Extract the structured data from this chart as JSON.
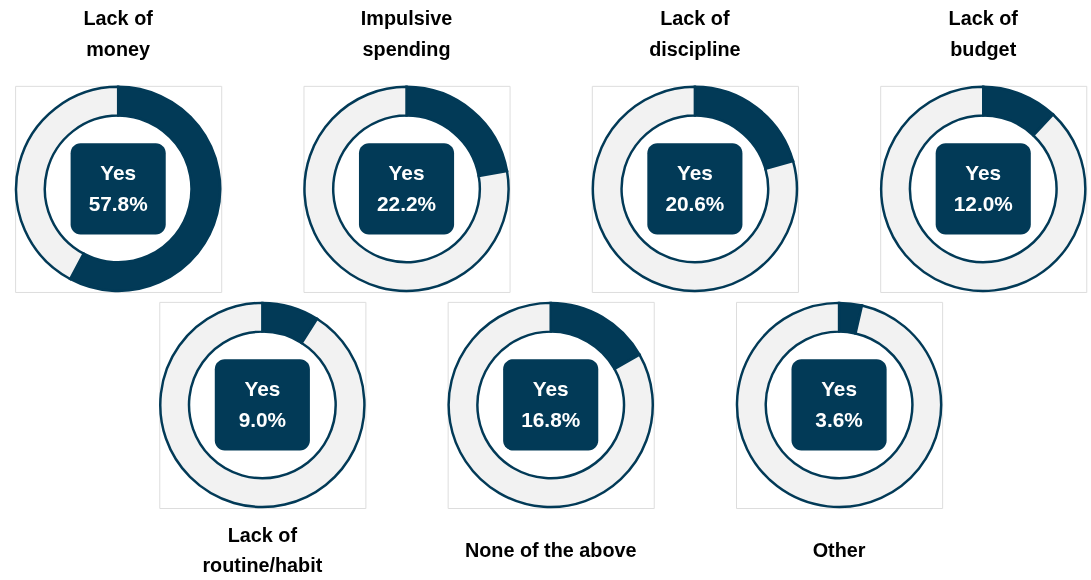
{
  "chart_data": [
    {
      "type": "donut",
      "title": "Lack of\nmoney",
      "categories": [
        "Yes",
        null
      ],
      "values": [
        57.8,
        42.2
      ],
      "colors": [
        "#023a57",
        "#f2f2f2"
      ],
      "value_labels": [
        "57.8%",
        null
      ]
    },
    {
      "type": "donut",
      "title": "Impulsive\nspending",
      "categories": [
        "Yes",
        null
      ],
      "values": [
        22.2,
        77.8
      ],
      "colors": [
        "#023a57",
        "#f2f2f2"
      ],
      "value_labels": [
        "22.2%",
        null
      ]
    },
    {
      "type": "donut",
      "title": "Lack of\ndiscipline",
      "categories": [
        "Yes",
        null
      ],
      "values": [
        20.6,
        79.4
      ],
      "colors": [
        "#023a57",
        "#f2f2f2"
      ],
      "value_labels": [
        "20.6%",
        null
      ]
    },
    {
      "type": "donut",
      "title": "Lack of\nbudget",
      "categories": [
        "Yes",
        null
      ],
      "values": [
        12.0,
        88.0
      ],
      "colors": [
        "#023a57",
        "#f2f2f2"
      ],
      "value_labels": [
        "12.0%",
        null
      ]
    },
    {
      "type": "donut",
      "title": "Lack of\nroutine/habit",
      "categories": [
        "Yes",
        null
      ],
      "values": [
        9.0,
        91.0
      ],
      "colors": [
        "#023a57",
        "#f2f2f2"
      ],
      "value_labels": [
        "9.0%",
        null
      ]
    },
    {
      "type": "donut",
      "title": "None of the above",
      "categories": [
        "Yes",
        null
      ],
      "values": [
        16.8,
        83.2
      ],
      "colors": [
        "#023a57",
        "#f2f2f2"
      ],
      "value_labels": [
        "16.8%",
        null
      ]
    },
    {
      "type": "donut",
      "title": "Other",
      "categories": [
        "Yes",
        null
      ],
      "values": [
        3.6,
        96.4
      ],
      "colors": [
        "#023a57",
        "#f2f2f2"
      ],
      "value_labels": [
        "3.6%",
        null
      ]
    }
  ]
}
